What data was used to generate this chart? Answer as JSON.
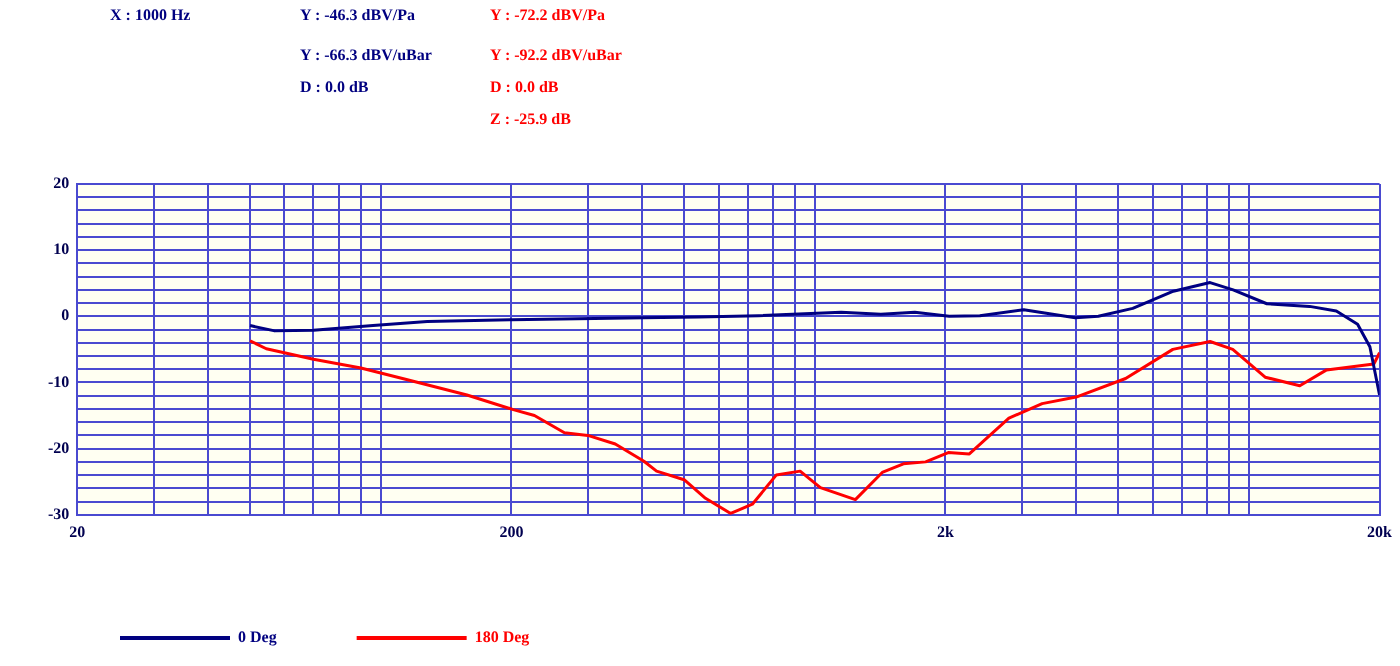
{
  "chart_data": {
    "type": "line",
    "annotations": [
      "X : 1000 Hz",
      "Y : -46.3 dBV/Pa",
      "Y : -66.3 dBV/uBar",
      "D : 0.0 dB",
      "Y : -72.2 dBV/Pa",
      "Y : -92.2 dBV/uBar",
      "D : 0.0 dB",
      "Z : -25.9 dB"
    ],
    "series": [
      {
        "name": "0 Deg",
        "color": "#000080",
        "x": [
          50,
          57,
          70,
          96,
          128,
          200,
          404,
          540,
          742,
          1150,
          1420,
          1700,
          2040,
          2400,
          3030,
          3980,
          4500,
          5400,
          6700,
          8140,
          9200,
          11000,
          13800,
          15900,
          17800,
          19000,
          20000
        ],
        "values": [
          -1.4,
          -2.2,
          -2.1,
          -1.4,
          -0.8,
          -0.5,
          -0.2,
          -0.1,
          0.1,
          0.6,
          0.3,
          0.6,
          0,
          0.1,
          1,
          -0.2,
          0,
          1.2,
          3.8,
          5.1,
          4,
          1.9,
          1.5,
          0.8,
          -1.2,
          -4.6,
          -11.9
        ]
      },
      {
        "name": "180 Deg",
        "color": "#ff0000",
        "x": [
          50,
          54.5,
          70,
          90,
          114,
          158,
          202,
          226,
          265,
          300,
          347,
          404,
          432,
          500,
          560,
          640,
          718,
          815,
          925,
          1030,
          1240,
          1430,
          1600,
          1800,
          2030,
          2270,
          2800,
          3340,
          4000,
          5200,
          6680,
          8140,
          9180,
          10900,
          13100,
          15100,
          19400,
          20000
        ],
        "values": [
          -3.7,
          -4.9,
          -6.5,
          -7.8,
          -9.5,
          -11.9,
          -14.1,
          -15,
          -17.6,
          -18,
          -19.3,
          -21.9,
          -23.4,
          -24.7,
          -27.5,
          -29.8,
          -28.4,
          -24,
          -23.4,
          -25.9,
          -27.7,
          -23.6,
          -22.3,
          -22,
          -20.6,
          -20.8,
          -15.4,
          -13.2,
          -12.2,
          -9.4,
          -5,
          -3.8,
          -5,
          -9.2,
          -10.5,
          -8.1,
          -7.2,
          -5.5
        ]
      }
    ],
    "log": "x",
    "xlim": [
      20,
      20000
    ],
    "xticks": [
      20,
      {
        "value": 30,
        "label": null
      },
      {
        "value": 40,
        "label": null
      },
      {
        "value": 50,
        "label": null
      },
      {
        "value": 60,
        "label": null
      },
      {
        "value": 70,
        "label": null
      },
      {
        "value": 80,
        "label": null
      },
      {
        "value": 90,
        "label": null
      },
      {
        "value": 100,
        "label": null
      },
      200,
      {
        "value": 300,
        "label": null
      },
      {
        "value": 400,
        "label": null
      },
      {
        "value": 500,
        "label": null
      },
      {
        "value": 600,
        "label": null
      },
      {
        "value": 700,
        "label": null
      },
      {
        "value": 800,
        "label": null
      },
      {
        "value": 900,
        "label": null
      },
      {
        "value": 1000,
        "label": null
      },
      {
        "value": 2000,
        "label": "2k"
      },
      {
        "value": 3000,
        "label": null
      },
      {
        "value": 4000,
        "label": null
      },
      {
        "value": 5000,
        "label": null
      },
      {
        "value": 6000,
        "label": null
      },
      {
        "value": 7000,
        "label": null
      },
      {
        "value": 8000,
        "label": null
      },
      {
        "value": 9000,
        "label": null
      },
      {
        "value": 10000,
        "label": null
      },
      {
        "value": 20000,
        "label": "20k"
      }
    ],
    "ylim": [
      -30,
      20
    ],
    "yticks": [
      -30,
      {
        "value": -28,
        "label": null
      },
      {
        "value": -26,
        "label": null
      },
      {
        "value": -24,
        "label": null
      },
      {
        "value": -22,
        "label": null
      },
      -20,
      {
        "value": -18,
        "label": null
      },
      {
        "value": -16,
        "label": null
      },
      {
        "value": -14,
        "label": null
      },
      {
        "value": -12,
        "label": null
      },
      -10,
      {
        "value": -8,
        "label": null
      },
      {
        "value": -6,
        "label": null
      },
      {
        "value": -4,
        "label": null
      },
      {
        "value": -2,
        "label": null
      },
      0,
      {
        "value": 2,
        "label": null
      },
      {
        "value": 4,
        "label": null
      },
      {
        "value": 6,
        "label": null
      },
      {
        "value": 8,
        "label": null
      },
      10,
      {
        "value": 12,
        "label": null
      },
      {
        "value": 14,
        "label": null
      },
      {
        "value": 16,
        "label": null
      },
      {
        "value": 18,
        "label": null
      },
      20
    ],
    "grid": true,
    "legend": "bottom",
    "marker": "none",
    "line_style": "solid"
  }
}
